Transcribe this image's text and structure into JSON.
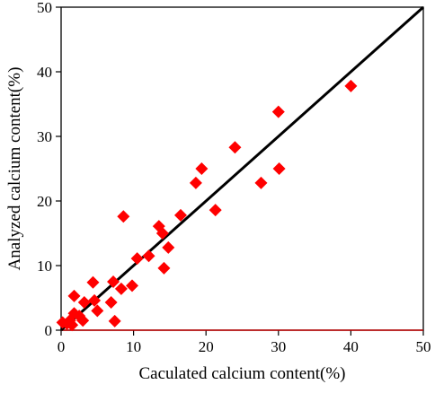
{
  "chart_data": {
    "type": "scatter",
    "title": "",
    "xlabel": "Caculated calcium content(%)",
    "ylabel": "Analyzed calcium content(%)",
    "xlim": [
      0,
      50
    ],
    "ylim": [
      0,
      50
    ],
    "xticks": [
      0,
      10,
      20,
      30,
      40,
      50
    ],
    "yticks": [
      0,
      10,
      20,
      30,
      40,
      50
    ],
    "grid": false,
    "legend": "none",
    "series": [
      {
        "marker": "diamond",
        "color": "#ff0000",
        "points": [
          [
            0.2,
            1.2
          ],
          [
            0.8,
            1.0
          ],
          [
            1.2,
            1.5
          ],
          [
            1.5,
            0.8
          ],
          [
            1.8,
            2.6
          ],
          [
            1.8,
            5.3
          ],
          [
            2.5,
            2.2
          ],
          [
            3.0,
            1.5
          ],
          [
            3.2,
            4.3
          ],
          [
            4.4,
            7.4
          ],
          [
            4.6,
            4.6
          ],
          [
            5.0,
            3.0
          ],
          [
            6.9,
            4.3
          ],
          [
            7.2,
            7.5
          ],
          [
            7.4,
            1.4
          ],
          [
            8.3,
            6.4
          ],
          [
            8.6,
            17.6
          ],
          [
            9.8,
            6.9
          ],
          [
            10.5,
            11.1
          ],
          [
            12.1,
            11.5
          ],
          [
            13.5,
            16.1
          ],
          [
            14.0,
            15.0
          ],
          [
            14.2,
            9.6
          ],
          [
            14.8,
            12.8
          ],
          [
            16.5,
            17.8
          ],
          [
            18.6,
            22.8
          ],
          [
            19.4,
            25.0
          ],
          [
            21.3,
            18.6
          ],
          [
            24.0,
            28.3
          ],
          [
            27.6,
            22.8
          ],
          [
            30.0,
            33.8
          ],
          [
            30.1,
            25.0
          ],
          [
            40.0,
            37.8
          ]
        ]
      }
    ],
    "reference_line": {
      "from": [
        0,
        0
      ],
      "to": [
        50,
        50
      ],
      "color": "#000000"
    },
    "zero_line_color": "#c00000"
  }
}
